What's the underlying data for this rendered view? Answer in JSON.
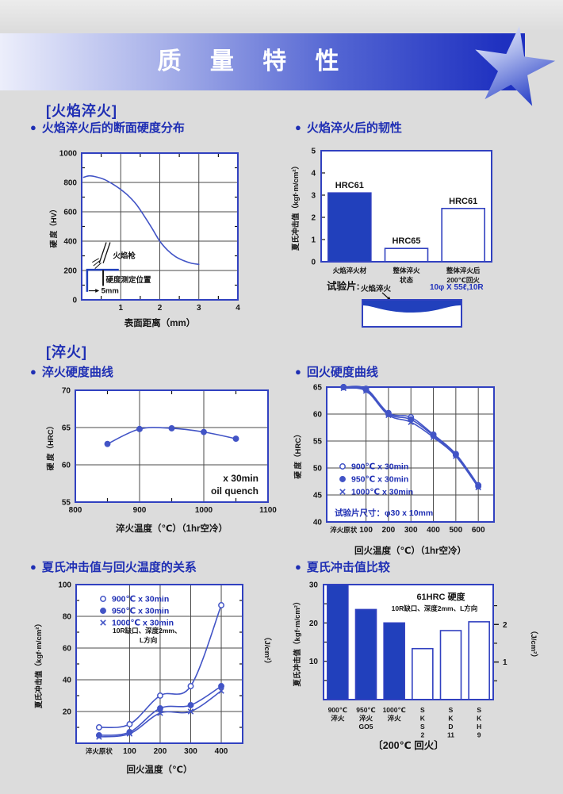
{
  "page": {
    "title": "质 量 特 性",
    "bullet": "●"
  },
  "sections": {
    "flame": "[火焰淬火]",
    "quench": "[淬火]"
  },
  "headings": {
    "h1": "火焰淬火后的断面硬度分布",
    "h2": "火焰淬火后的韧性",
    "h3": "淬火硬度曲线",
    "h4": "回火硬度曲线",
    "h5": "夏氏冲击值与回火温度的关系",
    "h6": "夏氏冲击值比较"
  },
  "test_piece": {
    "label": "试验片:",
    "zone_label": "火焰淬火",
    "dimension": "10φ X 55ℓ,10R"
  },
  "colors": {
    "accent_blue": "#2140bc",
    "frame_blue": "#3141c0",
    "line_blue": "#4254c6",
    "heading_blue": "#1f2fb4",
    "grid_gray": "#4a4a4a",
    "background": "#dcdcdc"
  },
  "chart_data": [
    {
      "id": "hardness-profile",
      "type": "line",
      "title": "火焰淬火后的断面硬度分布",
      "ylabel": "硬 度（HV）",
      "xlabel": "表面距离（mm）",
      "xlim": [
        0,
        4
      ],
      "ylim": [
        0,
        1000
      ],
      "xlabels": [
        1,
        2,
        3,
        4
      ],
      "ylabels": [
        0,
        200,
        400,
        600,
        800,
        1000
      ],
      "xgrid": [
        1,
        2,
        3
      ],
      "ygrid": [
        200,
        400,
        600,
        800
      ],
      "xminor": [
        0.5,
        1.5,
        2.5,
        3.5
      ],
      "yminor": [
        100,
        300,
        500,
        700,
        900
      ],
      "x": [
        0.05,
        0.2,
        0.4,
        0.6,
        0.8,
        1,
        1.2,
        1.4,
        1.6,
        1.8,
        2,
        2.2,
        2.4,
        2.6,
        2.8,
        3
      ],
      "series": [
        {
          "values": [
            835,
            845,
            836,
            818,
            788,
            752,
            708,
            650,
            572,
            488,
            400,
            338,
            295,
            268,
            250,
            242
          ]
        }
      ],
      "annotations": {
        "gun": "火焰枪",
        "measure": "硬度测定位置",
        "depth": "5mm"
      }
    },
    {
      "id": "flame-toughness",
      "type": "bar",
      "title": "火焰淬火后的韧性",
      "ylabel": "夏氏冲击值（kgf·m/cm²）",
      "ylim": [
        0,
        5
      ],
      "ylabels": [
        0,
        1,
        2,
        3,
        4,
        5
      ],
      "categories": [
        [
          "火焰淬火材"
        ],
        [
          "整体淬火",
          "状态"
        ],
        [
          "整体淬火后",
          "200℃回火"
        ]
      ],
      "values": [
        3.1,
        0.6,
        2.4
      ],
      "bar_labels": [
        "HRC61",
        "HRC65",
        "HRC61"
      ],
      "filled": [
        true,
        false,
        false
      ]
    },
    {
      "id": "quench-hardness",
      "type": "line",
      "title": "淬火硬度曲线",
      "ylabel": "硬 度（HRC）",
      "xlabel": "淬火温度（℃）（1hr空冷）",
      "xlim": [
        800,
        1100
      ],
      "ylim": [
        55,
        70
      ],
      "xlabels": [
        800,
        900,
        1000,
        1100
      ],
      "ylabels": [
        55,
        60,
        65,
        70
      ],
      "xgrid": [
        900,
        1000
      ],
      "ygrid": [
        60,
        65
      ],
      "xminor": [
        850,
        950,
        1050
      ],
      "x": [
        850,
        900,
        950,
        1000,
        1050
      ],
      "series": [
        {
          "marker": "filled",
          "values": [
            62.8,
            64.8,
            64.9,
            64.4,
            63.5
          ]
        }
      ],
      "notes": [
        "x 30min",
        "oil quench"
      ]
    },
    {
      "id": "temper-hardness",
      "type": "line",
      "title": "回火硬度曲线",
      "ylabel": "硬 度（HRC）",
      "xlabel": "回火温度（℃）（1hr空冷）",
      "categories": [
        "淬火原状",
        "100",
        "200",
        "300",
        "400",
        "500",
        "600"
      ],
      "ylim": [
        40,
        65
      ],
      "ylabels": [
        40,
        45,
        50,
        55,
        60,
        65
      ],
      "xgrid": [
        1,
        2,
        3,
        4,
        5,
        6
      ],
      "ygrid": [
        45,
        50,
        55,
        60
      ],
      "legend": true,
      "series": [
        {
          "name": "900℃ x 30min",
          "marker": "open",
          "values": [
            65,
            64.7,
            60.2,
            59.4,
            56.2,
            52.6,
            46.8
          ]
        },
        {
          "name": "950℃ x 30min",
          "marker": "filled",
          "values": [
            65,
            64.5,
            60.0,
            59.0,
            56.0,
            52.4,
            46.6
          ]
        },
        {
          "name": "1000℃ x 30min",
          "marker": "x",
          "values": [
            64.8,
            64.3,
            59.8,
            58.5,
            55.7,
            52.2,
            46.4
          ]
        }
      ],
      "notes": [
        "试验片尺寸：φ30 x 10mm"
      ]
    },
    {
      "id": "impact-temper",
      "type": "line",
      "title": "夏氏冲击值与回火温度的关系",
      "ylabel": "夏氏冲击值（kgf·m/cm²）",
      "ylabel_right": "（J/cm²）",
      "xlabel": "回火温度（℃）",
      "categories": [
        "淬火原状",
        "100",
        "200",
        "300",
        "400"
      ],
      "ylim": [
        0,
        100
      ],
      "ylabels": [
        20,
        40,
        60,
        80,
        100
      ],
      "xgrid": [
        1,
        2,
        3,
        4
      ],
      "ygrid": [
        20,
        40,
        60,
        80
      ],
      "yminor": [
        10,
        30,
        50,
        70,
        90
      ],
      "legend": true,
      "series": [
        {
          "name": "900℃ x 30min",
          "marker": "open",
          "values": [
            10,
            12,
            30,
            36,
            87
          ]
        },
        {
          "name": "950℃ x 30min",
          "marker": "filled",
          "values": [
            5,
            7,
            22,
            24,
            36
          ]
        },
        {
          "name": "1000℃ x 30min",
          "marker": "x",
          "values": [
            4,
            6,
            19,
            20,
            33
          ]
        }
      ],
      "notes": [
        "10R缺口、深度2mm、",
        "L方向"
      ]
    },
    {
      "id": "impact-compare",
      "type": "bar",
      "title": "夏氏冲击值比较",
      "ylabel": "夏氏冲击值（kgf·m/cm²）",
      "ylabel_right": "（J/cm²）",
      "ylim": [
        0,
        30
      ],
      "ylabels": [
        10,
        20,
        30
      ],
      "yminor": [
        5,
        15,
        25
      ],
      "right_ticks": [
        {
          "value": 9.8,
          "label": "1"
        },
        {
          "value": 19.6,
          "label": "2"
        }
      ],
      "right_minor": [
        4.9,
        14.7,
        24.5
      ],
      "categories": [
        [
          "900℃",
          "淬火"
        ],
        [
          "950℃",
          "淬火",
          "GO5"
        ],
        [
          "1000℃",
          "淬火"
        ],
        [
          "S",
          "K",
          "S",
          "2"
        ],
        [
          "S",
          "K",
          "D",
          "11"
        ],
        [
          "S",
          "K",
          "H",
          "9"
        ]
      ],
      "values": [
        30,
        23.5,
        20,
        13.3,
        18,
        20.3
      ],
      "filled": [
        true,
        true,
        true,
        false,
        false,
        false
      ],
      "notes": [
        "61HRC 硬度",
        "10R缺口、深度2mm、L方向"
      ],
      "caption": "〔200℃ 回火〕"
    }
  ]
}
